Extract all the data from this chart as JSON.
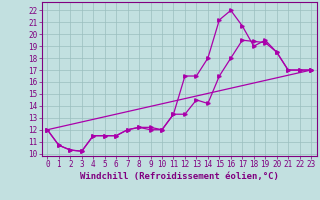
{
  "xlabel": "Windchill (Refroidissement éolien,°C)",
  "bg_color": "#c2e0e0",
  "line_color": "#aa00aa",
  "xlim": [
    -0.5,
    23.5
  ],
  "ylim": [
    9.8,
    22.7
  ],
  "xticks": [
    0,
    1,
    2,
    3,
    4,
    5,
    6,
    7,
    8,
    9,
    10,
    11,
    12,
    13,
    14,
    15,
    16,
    17,
    18,
    19,
    20,
    21,
    22,
    23
  ],
  "yticks": [
    10,
    11,
    12,
    13,
    14,
    15,
    16,
    17,
    18,
    19,
    20,
    21,
    22
  ],
  "line1_x": [
    0,
    1,
    2,
    3,
    4,
    5,
    6,
    7,
    8,
    9,
    10,
    11,
    12,
    13,
    14,
    15,
    16,
    17,
    18,
    19,
    20,
    21,
    22,
    23
  ],
  "line1_y": [
    12.0,
    10.7,
    10.3,
    10.2,
    11.5,
    11.5,
    11.5,
    12.0,
    12.2,
    12.2,
    12.0,
    13.3,
    13.3,
    14.5,
    14.2,
    16.5,
    18.0,
    19.5,
    19.4,
    19.3,
    18.5,
    17.0,
    17.0,
    17.0
  ],
  "line2_x": [
    0,
    1,
    2,
    3,
    4,
    5,
    6,
    7,
    8,
    9,
    10,
    11,
    12,
    13,
    14,
    15,
    16,
    17,
    18,
    19,
    20,
    21,
    22,
    23
  ],
  "line2_y": [
    12.0,
    10.7,
    10.3,
    10.2,
    11.5,
    11.5,
    11.5,
    12.0,
    12.2,
    12.0,
    12.0,
    13.3,
    16.5,
    16.5,
    18.0,
    21.2,
    22.0,
    20.7,
    19.0,
    19.5,
    18.5,
    17.0,
    17.0,
    17.0
  ],
  "line3_x": [
    0,
    23
  ],
  "line3_y": [
    12.0,
    17.0
  ],
  "grid_color": "#9abebe",
  "tick_fontsize": 5.5,
  "label_fontsize": 6.5
}
